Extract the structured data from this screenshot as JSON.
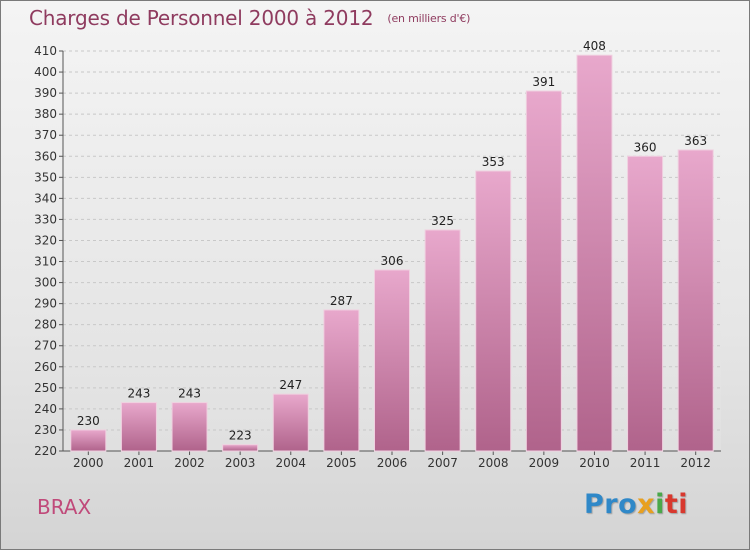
{
  "header": {
    "title": "Charges de Personnel 2000 à 2012",
    "subtitle": "(en milliers d'€)"
  },
  "footer": {
    "city": "BRAX",
    "logo": "Proxiti"
  },
  "colors": {
    "bar_top": "#e8a8cc",
    "bar_bottom": "#b0638b",
    "title": "#8f3b5f",
    "city": "#c04a7a"
  },
  "chart_data": {
    "type": "bar",
    "categories": [
      "2000",
      "2001",
      "2002",
      "2003",
      "2004",
      "2005",
      "2006",
      "2007",
      "2008",
      "2009",
      "2010",
      "2011",
      "2012"
    ],
    "values": [
      230,
      243,
      243,
      223,
      247,
      287,
      306,
      325,
      353,
      391,
      408,
      360,
      363
    ],
    "title": "Charges de Personnel 2000 à 2012",
    "subtitle": "(en milliers d'€)",
    "xlabel": "",
    "ylabel": "",
    "ylim": [
      220,
      410
    ],
    "yticks": [
      220,
      230,
      240,
      250,
      260,
      270,
      280,
      290,
      300,
      310,
      320,
      330,
      340,
      350,
      360,
      370,
      380,
      390,
      400,
      410
    ],
    "grid": true,
    "data_labels": true
  }
}
